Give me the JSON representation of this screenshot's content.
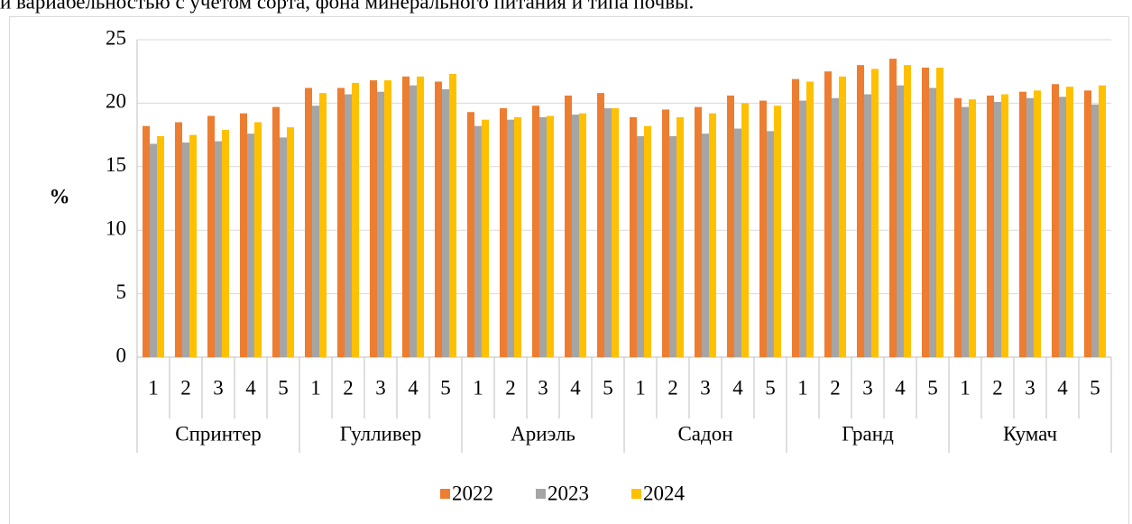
{
  "caption": "и вариабельностью с учетом сорта, фона минерального питания и типа почвы.",
  "chart_data": {
    "type": "bar",
    "y_label": "%",
    "groups": [
      "Спринтер",
      "Гулливер",
      "Ариэль",
      "Садон",
      "Гранд",
      "Кумач"
    ],
    "categories": [
      "1",
      "2",
      "3",
      "4",
      "5",
      "1",
      "2",
      "3",
      "4",
      "5",
      "1",
      "2",
      "3",
      "4",
      "5",
      "1",
      "2",
      "3",
      "4",
      "5",
      "1",
      "2",
      "3",
      "4",
      "5",
      "1",
      "2",
      "3",
      "4",
      "5"
    ],
    "series": [
      {
        "name": "2022",
        "color": "#ed7d31",
        "values": [
          18.2,
          18.5,
          19.0,
          19.2,
          19.7,
          21.2,
          21.2,
          21.8,
          22.1,
          21.7,
          19.3,
          19.6,
          19.8,
          20.6,
          20.8,
          18.9,
          19.5,
          19.7,
          20.6,
          20.2,
          21.9,
          22.5,
          23.0,
          23.5,
          22.8,
          20.4,
          20.6,
          20.9,
          21.5,
          21.0
        ]
      },
      {
        "name": "2023",
        "color": "#a5a5a5",
        "values": [
          16.8,
          16.9,
          17.0,
          17.6,
          17.3,
          19.8,
          20.7,
          20.9,
          21.4,
          21.1,
          18.2,
          18.7,
          18.9,
          19.1,
          19.6,
          17.4,
          17.4,
          17.6,
          18.0,
          17.8,
          20.2,
          20.4,
          20.7,
          21.4,
          21.2,
          19.7,
          20.1,
          20.4,
          20.5,
          19.9
        ]
      },
      {
        "name": "2024",
        "color": "#ffc000",
        "values": [
          17.4,
          17.5,
          17.9,
          18.5,
          18.1,
          20.8,
          21.6,
          21.8,
          22.1,
          22.3,
          18.7,
          18.9,
          19.0,
          19.2,
          19.6,
          18.2,
          18.9,
          19.2,
          20.0,
          19.8,
          21.7,
          22.1,
          22.7,
          23.0,
          22.8,
          20.3,
          20.7,
          21.0,
          21.3,
          21.4
        ]
      }
    ],
    "ylim": [
      0,
      25
    ],
    "yticks": [
      0,
      5,
      10,
      15,
      20,
      25
    ],
    "grid": true,
    "legend": "bottom"
  }
}
